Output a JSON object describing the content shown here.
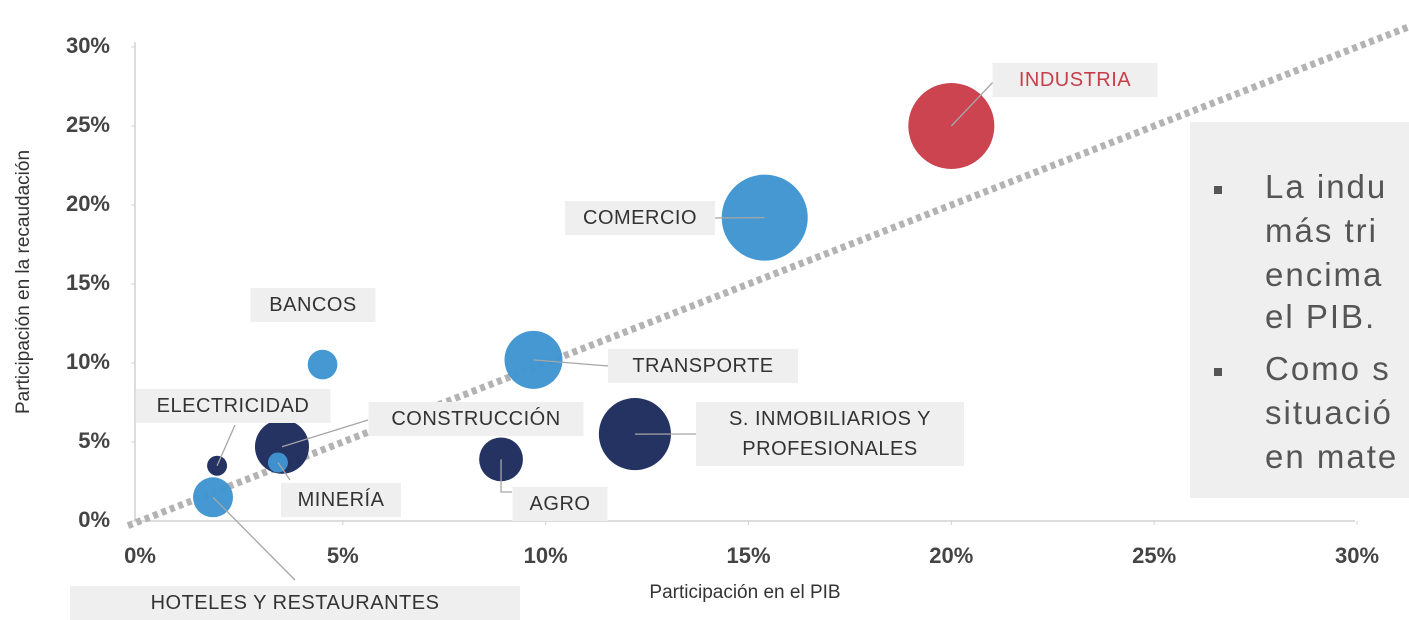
{
  "chart_data": {
    "type": "scatter",
    "xlabel": "Participación en el PIB",
    "ylabel": "Participación en la recaudación",
    "labels": [
      "INDUSTRIA",
      "COMERCIO",
      "TRANSPORTE",
      "BANCOS",
      "S. INMOBILIARIOS Y PROFESIONALES",
      "AGRO",
      "CONSTRUCCIÓN",
      "MINERÍA",
      "ELECTRICIDAD",
      "HOTELES Y RESTAURANTES"
    ],
    "x": [
      20.0,
      15.4,
      9.7,
      4.5,
      12.2,
      8.9,
      3.5,
      3.4,
      1.9,
      1.8
    ],
    "values": [
      25.0,
      19.2,
      10.2,
      9.9,
      5.5,
      3.9,
      4.7,
      3.7,
      3.5,
      1.5
    ],
    "sizes": [
      185,
      185,
      84,
      22,
      130,
      48,
      73,
      10,
      10,
      40
    ],
    "colors": [
      "#c93e4a",
      "#3f95cf",
      "#3f95cf",
      "#3f95cf",
      "#1e2c5e",
      "#1e2c5e",
      "#1e2c5e",
      "#3f95cf",
      "#1e2c5e",
      "#3f95cf"
    ],
    "label_colors": [
      "#c93e4a",
      "#333333",
      "#333333",
      "#333333",
      "#333333",
      "#333333",
      "#333333",
      "#333333",
      "#333333",
      "#333333"
    ],
    "reference_line_color": "#b3b3b3",
    "xlim": [
      0,
      30
    ],
    "ylim": [
      0,
      30
    ],
    "xticks": [
      {
        "value": 0,
        "label": "0%"
      },
      {
        "value": 5,
        "label": "5%"
      },
      {
        "value": 10,
        "label": "10%"
      },
      {
        "value": 15,
        "label": "15%"
      },
      {
        "value": 20,
        "label": "20%"
      },
      {
        "value": 25,
        "label": "25%"
      },
      {
        "value": 30,
        "label": "30%"
      }
    ],
    "yticks": [
      {
        "value": 0,
        "label": "0%"
      },
      {
        "value": 5,
        "label": "5%"
      },
      {
        "value": 10,
        "label": "10%"
      },
      {
        "value": 15,
        "label": "15%"
      },
      {
        "value": 20,
        "label": "20%"
      },
      {
        "value": 25,
        "label": "25%"
      },
      {
        "value": 30,
        "label": "30%"
      }
    ]
  },
  "note": {
    "bullets": [
      [
        "La indu",
        "más tri",
        "encima",
        "el PIB."
      ],
      [
        "Como s",
        "situació",
        "en mate"
      ]
    ]
  }
}
